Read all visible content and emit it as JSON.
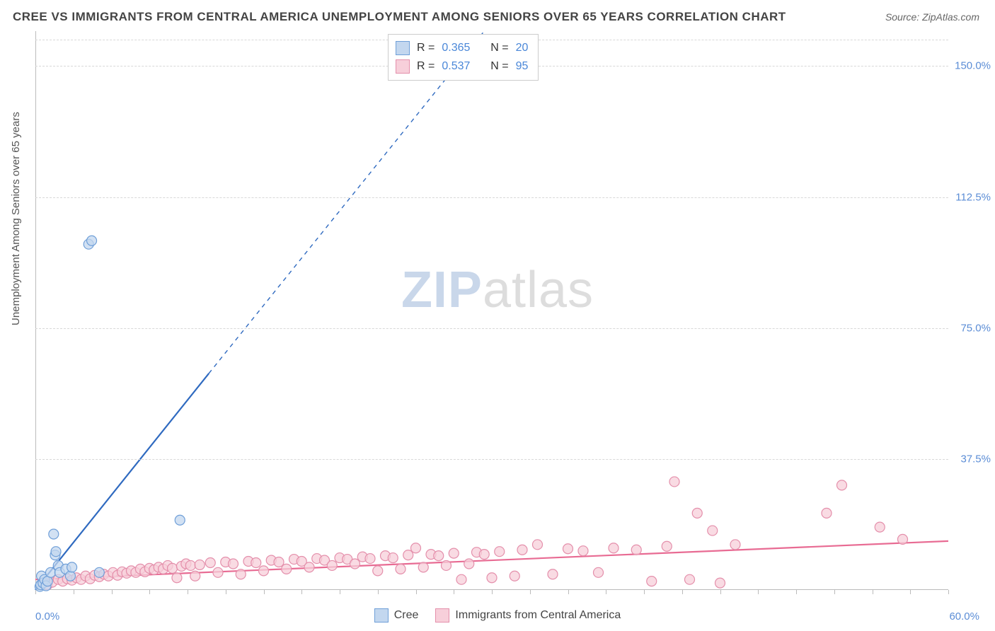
{
  "title": "CREE VS IMMIGRANTS FROM CENTRAL AMERICA UNEMPLOYMENT AMONG SENIORS OVER 65 YEARS CORRELATION CHART",
  "source": "Source: ZipAtlas.com",
  "ylabel": "Unemployment Among Seniors over 65 years",
  "watermark_zip": "ZIP",
  "watermark_atlas": "atlas",
  "chart": {
    "type": "scatter",
    "background_color": "#ffffff",
    "grid_color": "#d8d8d8",
    "axis_color": "#bbbbbb",
    "tick_label_color": "#5b8dd6",
    "xlim": [
      0,
      60
    ],
    "ylim": [
      0,
      160
    ],
    "xticks_minor_step": 2.5,
    "yticks": [
      37.5,
      75.0,
      112.5,
      150.0
    ],
    "ytick_labels": [
      "37.5%",
      "75.0%",
      "112.5%",
      "150.0%"
    ],
    "xmin_label": "0.0%",
    "xmax_label": "60.0%",
    "marker_radius": 7,
    "marker_stroke_width": 1.2,
    "line_width": 2.2
  },
  "series": [
    {
      "key": "cree",
      "label": "Cree",
      "fill": "#c3d7ef",
      "stroke": "#6f9fd8",
      "line_color": "#2f6ac0",
      "R_label": "R =",
      "R": "0.365",
      "N_label": "N =",
      "N": "20",
      "trend": {
        "x1": 0,
        "y1": 0,
        "x2": 11.4,
        "y2": 62,
        "dash_to_x": 29.5,
        "dash_to_y": 160
      },
      "points": [
        [
          0.3,
          1
        ],
        [
          0.35,
          1.5
        ],
        [
          0.4,
          4
        ],
        [
          0.5,
          2
        ],
        [
          0.6,
          3
        ],
        [
          0.7,
          1.2
        ],
        [
          0.8,
          2.5
        ],
        [
          1.0,
          5
        ],
        [
          1.2,
          16
        ],
        [
          1.3,
          10
        ],
        [
          1.35,
          11
        ],
        [
          1.5,
          7
        ],
        [
          1.6,
          5
        ],
        [
          2.0,
          6
        ],
        [
          2.3,
          4
        ],
        [
          2.4,
          6.5
        ],
        [
          3.5,
          99
        ],
        [
          3.7,
          100
        ],
        [
          4.2,
          5
        ],
        [
          9.5,
          20
        ]
      ]
    },
    {
      "key": "imm",
      "label": "Immigrants from Central America",
      "fill": "#f7cfda",
      "stroke": "#e48fab",
      "line_color": "#e86b93",
      "R_label": "R =",
      "R": "0.537",
      "N_label": "N =",
      "N": "95",
      "trend": {
        "x1": 0,
        "y1": 3,
        "x2": 60,
        "y2": 14
      },
      "points": [
        [
          0.5,
          2
        ],
        [
          0.8,
          1.5
        ],
        [
          1.1,
          2.2
        ],
        [
          1.5,
          3
        ],
        [
          1.8,
          2.5
        ],
        [
          2.1,
          3.2
        ],
        [
          2.4,
          2.8
        ],
        [
          2.7,
          3.5
        ],
        [
          3.0,
          3
        ],
        [
          3.3,
          4
        ],
        [
          3.6,
          3.2
        ],
        [
          3.9,
          4.2
        ],
        [
          4.2,
          3.8
        ],
        [
          4.5,
          4.5
        ],
        [
          4.8,
          4
        ],
        [
          5.1,
          5
        ],
        [
          5.4,
          4.2
        ],
        [
          5.7,
          5.2
        ],
        [
          6.0,
          4.8
        ],
        [
          6.3,
          5.5
        ],
        [
          6.6,
          5
        ],
        [
          6.9,
          6
        ],
        [
          7.2,
          5.2
        ],
        [
          7.5,
          6.2
        ],
        [
          7.8,
          5.8
        ],
        [
          8.1,
          6.5
        ],
        [
          8.4,
          6
        ],
        [
          8.7,
          7
        ],
        [
          9.0,
          6.2
        ],
        [
          9.3,
          3.5
        ],
        [
          9.6,
          6.8
        ],
        [
          9.9,
          7.5
        ],
        [
          10.2,
          7
        ],
        [
          10.5,
          4
        ],
        [
          10.8,
          7.2
        ],
        [
          11.5,
          7.8
        ],
        [
          12.0,
          5
        ],
        [
          12.5,
          8
        ],
        [
          13.0,
          7.5
        ],
        [
          13.5,
          4.5
        ],
        [
          14.0,
          8.2
        ],
        [
          14.5,
          7.8
        ],
        [
          15.0,
          5.5
        ],
        [
          15.5,
          8.5
        ],
        [
          16.0,
          8
        ],
        [
          16.5,
          6
        ],
        [
          17.0,
          8.8
        ],
        [
          17.5,
          8.2
        ],
        [
          18.0,
          6.5
        ],
        [
          18.5,
          9
        ],
        [
          19.0,
          8.5
        ],
        [
          19.5,
          7
        ],
        [
          20.0,
          9.2
        ],
        [
          20.5,
          8.8
        ],
        [
          21.0,
          7.5
        ],
        [
          21.5,
          9.5
        ],
        [
          22.0,
          9
        ],
        [
          22.5,
          5.5
        ],
        [
          23.0,
          9.8
        ],
        [
          23.5,
          9.2
        ],
        [
          24.0,
          6
        ],
        [
          24.5,
          10
        ],
        [
          25.0,
          12
        ],
        [
          25.5,
          6.5
        ],
        [
          26.0,
          10.2
        ],
        [
          26.5,
          9.8
        ],
        [
          27.0,
          7
        ],
        [
          27.5,
          10.5
        ],
        [
          28.0,
          3
        ],
        [
          28.5,
          7.5
        ],
        [
          29.0,
          10.8
        ],
        [
          29.5,
          10.2
        ],
        [
          30.0,
          3.5
        ],
        [
          30.5,
          11
        ],
        [
          31.5,
          4
        ],
        [
          32.0,
          11.5
        ],
        [
          33.0,
          13
        ],
        [
          34.0,
          4.5
        ],
        [
          35.0,
          11.8
        ],
        [
          36.0,
          11.2
        ],
        [
          37.0,
          5
        ],
        [
          38.0,
          12
        ],
        [
          39.5,
          11.5
        ],
        [
          40.5,
          2.5
        ],
        [
          41.5,
          12.5
        ],
        [
          42.0,
          31
        ],
        [
          43.0,
          3
        ],
        [
          43.5,
          22
        ],
        [
          44.5,
          17
        ],
        [
          45.0,
          2
        ],
        [
          46.0,
          13
        ],
        [
          52.0,
          22
        ],
        [
          53.0,
          30
        ],
        [
          55.5,
          18
        ],
        [
          57.0,
          14.5
        ]
      ]
    }
  ],
  "legend": {
    "cree": "Cree",
    "imm": "Immigrants from Central America"
  }
}
